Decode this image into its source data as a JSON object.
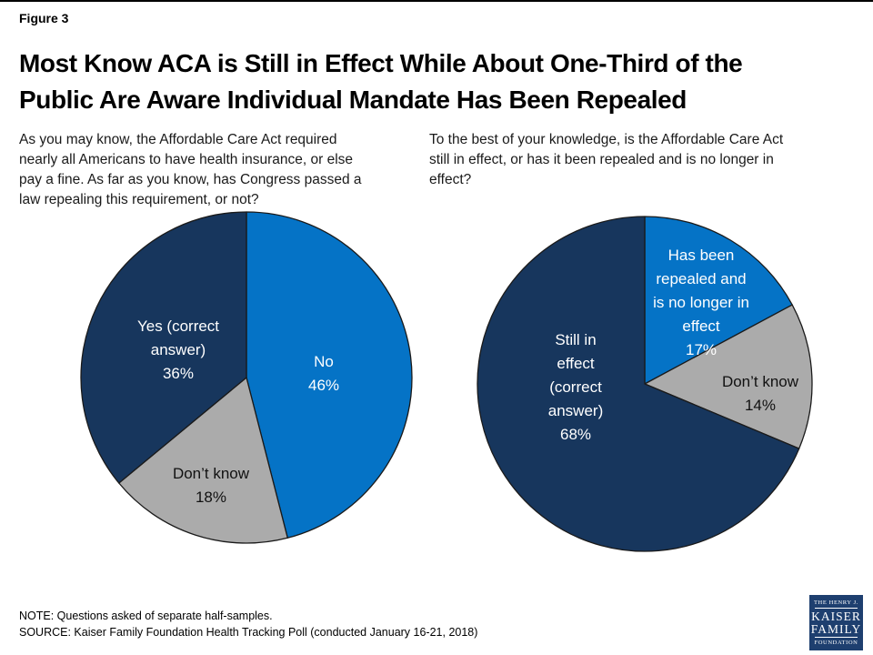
{
  "figure_label": "Figure 3",
  "title": "Most Know ACA is Still in Effect While About One-Third of the\nPublic Are Aware Individual Mandate Has Been Repealed",
  "questions": {
    "left": "As you may know, the Affordable Care Act required\nnearly all Americans to have health insurance, or else\npay a fine. As far as you know, has Congress passed a\nlaw repealing this requirement, or not?",
    "right": "To the best of your knowledge, is the Affordable Care Act\nstill in effect, or has it been repealed and is no longer in\neffect?"
  },
  "colors": {
    "bright_blue": "#0573c6",
    "dark_navy": "#17365d",
    "gray": "#ababab",
    "slice_outline": "#1a1a1a",
    "logo_navy": "#1e3f6f"
  },
  "chart_data": [
    {
      "type": "pie",
      "title": "Has Congress passed a law repealing the individual mandate requirement?",
      "start_angle_deg": 0,
      "direction": "clockwise",
      "slices": [
        {
          "label": "No",
          "value": 46,
          "color": "#0573c6",
          "display": "No\n46%"
        },
        {
          "label": "Don’t know",
          "value": 18,
          "color": "#ababab",
          "display": "Don’t know\n18%"
        },
        {
          "label": "Yes (correct answer)",
          "value": 36,
          "color": "#17365d",
          "display": "Yes (correct\nanswer)\n36%"
        }
      ]
    },
    {
      "type": "pie",
      "title": "Is the Affordable Care Act still in effect, or has it been repealed?",
      "start_angle_deg": 0,
      "direction": "clockwise",
      "slices": [
        {
          "label": "Has been repealed and is no longer in effect",
          "value": 17,
          "color": "#0573c6",
          "display": "Has been\nrepealed and\nis no longer in\neffect\n17%"
        },
        {
          "label": "Don’t know",
          "value": 14,
          "color": "#ababab",
          "display": "Don’t know\n14%"
        },
        {
          "label": "Still in effect (correct answer)",
          "value": 68,
          "color": "#17365d",
          "display": "Still in\neffect\n(correct\nanswer)\n68%"
        }
      ]
    }
  ],
  "footer": {
    "note": "NOTE: Questions asked of separate half-samples.",
    "source": "SOURCE: Kaiser Family Foundation Health Tracking Poll (conducted January 16-21, 2018)"
  },
  "logo": {
    "line1": "THE HENRY J.",
    "line2": "KAISER",
    "line3": "FAMILY",
    "line4": "FOUNDATION"
  }
}
